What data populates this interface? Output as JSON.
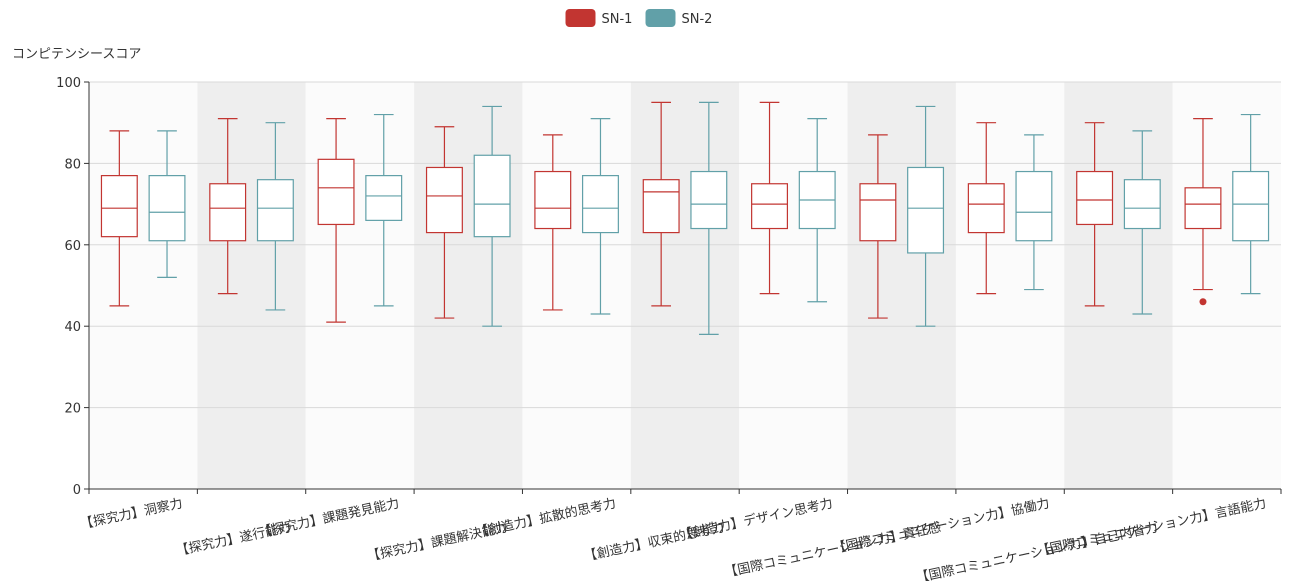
{
  "chart_data": {
    "type": "boxplot",
    "ylabel": "コンピテンシースコア",
    "ylim": [
      0,
      100
    ],
    "yticks": [
      0,
      20,
      40,
      60,
      80,
      100
    ],
    "grid": true,
    "legend": "top-center",
    "categories": [
      "【探究力】洞察力",
      "【探究力】遂行能力",
      "【探究力】課題発見能力",
      "【探究力】課題解決能力",
      "【創造力】拡散的思考力",
      "【創造力】収束的思考力",
      "【創造力】デザイン思考力",
      "【国際コミュニケーション力】責任感",
      "【国際コミュニケーション力】協働力",
      "【国際コミュニケーション力】自己内省力",
      "【国際コミュニケーション力】言語能力"
    ],
    "series": [
      {
        "name": "SN-1",
        "color": "#c23531",
        "boxes": [
          [
            45,
            62,
            69,
            77,
            88
          ],
          [
            48,
            61,
            69,
            75,
            91
          ],
          [
            41,
            65,
            74,
            81,
            91
          ],
          [
            42,
            63,
            72,
            79,
            89
          ],
          [
            44,
            64,
            69,
            78,
            87
          ],
          [
            45,
            63,
            73,
            76,
            95
          ],
          [
            48,
            64,
            70,
            75,
            95
          ],
          [
            42,
            61,
            71,
            75,
            87
          ],
          [
            48,
            63,
            70,
            75,
            90
          ],
          [
            45,
            65,
            71,
            78,
            90
          ],
          [
            49,
            64,
            70,
            74,
            91
          ]
        ],
        "outliers": [
          [
            10,
            46
          ]
        ]
      },
      {
        "name": "SN-2",
        "color": "#61a0a8",
        "boxes": [
          [
            52,
            61,
            68,
            77,
            88
          ],
          [
            44,
            61,
            69,
            76,
            90
          ],
          [
            45,
            66,
            72,
            77,
            92
          ],
          [
            40,
            62,
            70,
            82,
            94
          ],
          [
            43,
            63,
            69,
            77,
            91
          ],
          [
            38,
            64,
            70,
            78,
            95
          ],
          [
            46,
            64,
            71,
            78,
            91
          ],
          [
            40,
            58,
            69,
            79,
            94
          ],
          [
            49,
            61,
            68,
            78,
            87
          ],
          [
            43,
            64,
            69,
            76,
            88
          ],
          [
            48,
            61,
            70,
            78,
            92
          ]
        ],
        "outliers": []
      }
    ]
  }
}
